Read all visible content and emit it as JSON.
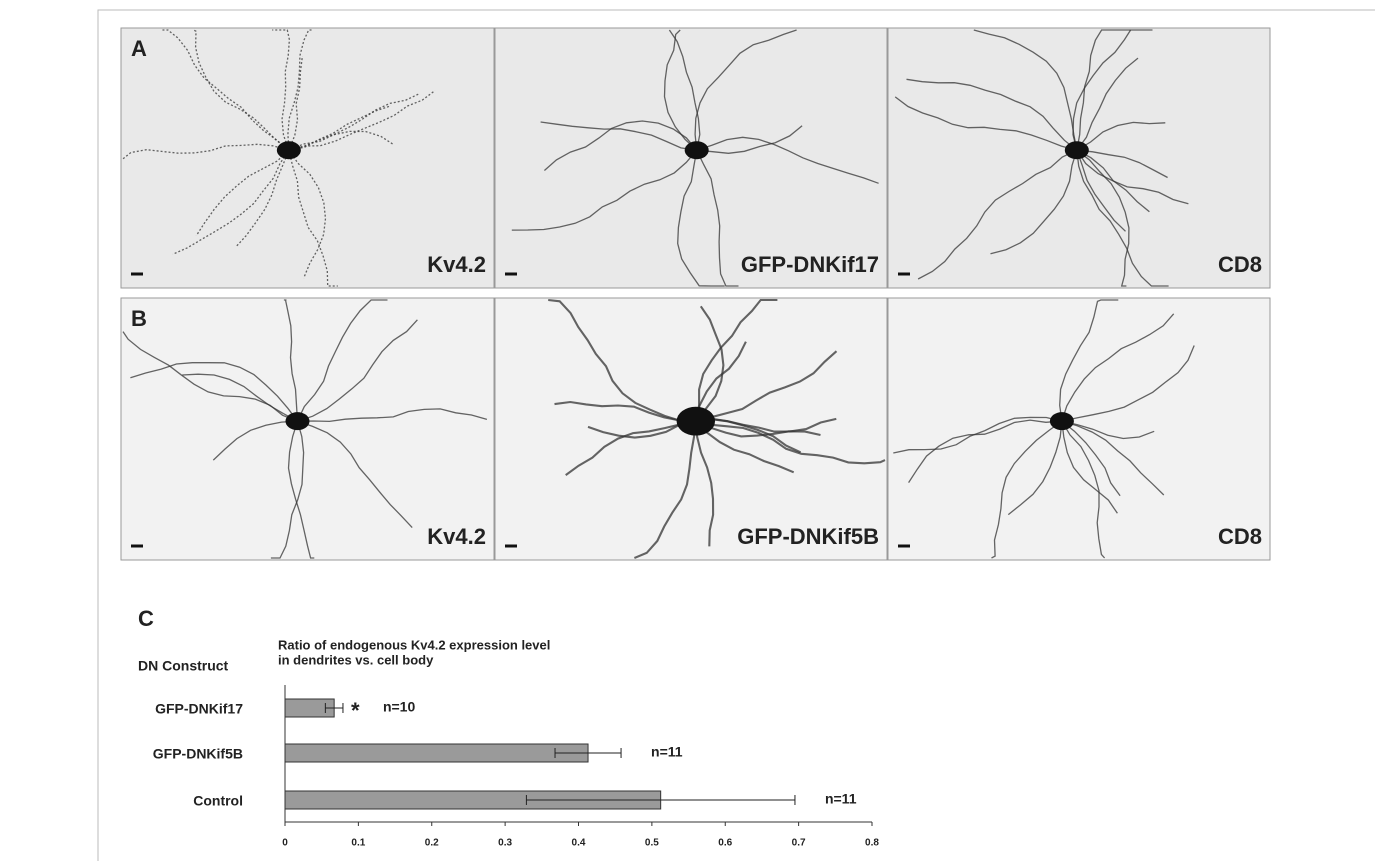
{
  "panels": [
    {
      "label": "A",
      "images": [
        "Kv4.2",
        "GFP-DNKif17",
        "CD8"
      ]
    },
    {
      "label": "B",
      "images": [
        "Kv4.2",
        "GFP-DNKif5B",
        "CD8"
      ]
    }
  ],
  "chart_data": {
    "type": "bar",
    "orientation": "horizontal",
    "panel_label": "C",
    "title": [
      "Ratio of endogenous Kv4.2 expression level",
      "in dendrites vs. cell body"
    ],
    "y_label": "DN Construct",
    "categories": [
      "GFP-DNKif17",
      "GFP-DNKif5B",
      "Control"
    ],
    "values": [
      0.067,
      0.413,
      0.512
    ],
    "errors": [
      0.012,
      0.045,
      0.183
    ],
    "n_labels": [
      "n=10",
      "n=11",
      "n=11"
    ],
    "star_labels": [
      "*",
      null,
      null
    ],
    "color": "#9a9a9a",
    "xlim": [
      0,
      0.8
    ],
    "xticks": [
      0,
      0.1,
      0.2,
      0.3,
      0.4,
      0.5,
      0.6,
      0.7,
      0.8
    ]
  }
}
